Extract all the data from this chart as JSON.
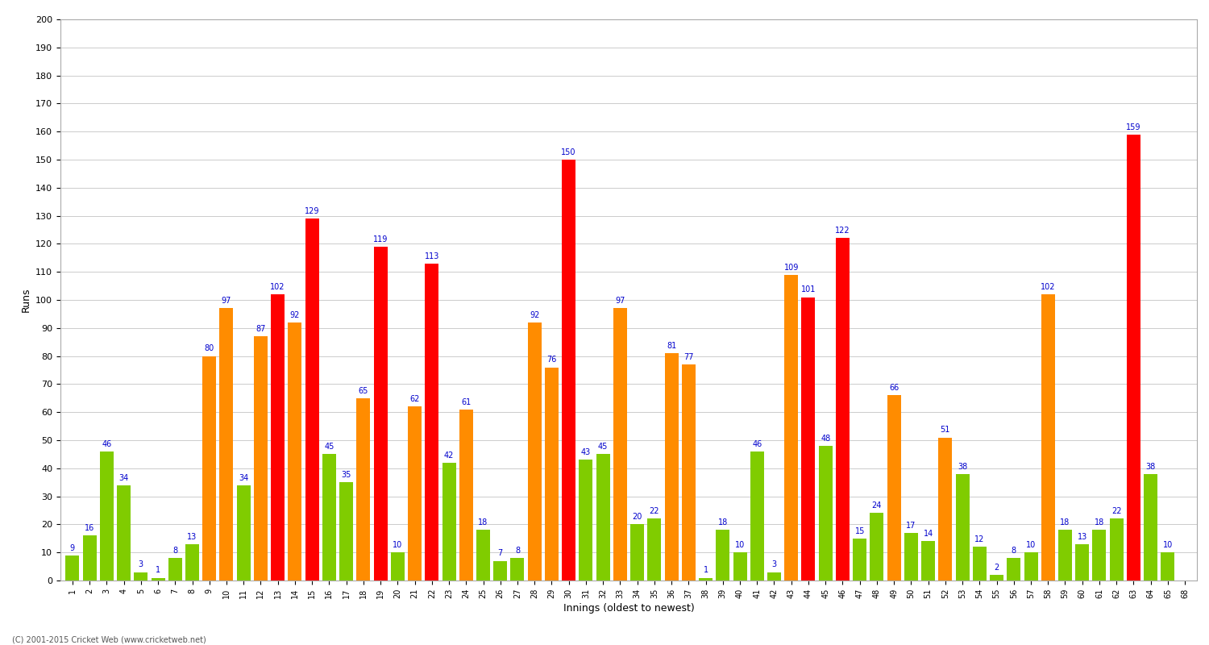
{
  "title": "",
  "xlabel": "Innings (oldest to newest)",
  "ylabel": "Runs",
  "footnote": "(C) 2001-2015 Cricket Web (www.cricketweb.net)",
  "ylim": [
    0,
    200
  ],
  "yticks": [
    0,
    10,
    20,
    30,
    40,
    50,
    60,
    70,
    80,
    90,
    100,
    110,
    120,
    130,
    140,
    150,
    160,
    170,
    180,
    190,
    200
  ],
  "innings_labels": [
    "1",
    "2",
    "3",
    "4",
    "5",
    "6",
    "7",
    "8",
    "9",
    "10",
    "11",
    "12",
    "13",
    "14",
    "15",
    "16",
    "17",
    "18",
    "19",
    "20",
    "21",
    "22",
    "23",
    "24",
    "25",
    "26",
    "27",
    "28",
    "29",
    "30",
    "31",
    "32",
    "33",
    "34",
    "35",
    "36",
    "37",
    "38",
    "39",
    "40",
    "41",
    "42",
    "43",
    "44",
    "45",
    "46",
    "47",
    "48",
    "49",
    "50",
    "51",
    "52",
    "53",
    "54",
    "55",
    "56",
    "57",
    "58",
    "59",
    "60",
    "61",
    "62",
    "63",
    "64",
    "65",
    "68"
  ],
  "values": [
    9,
    16,
    46,
    34,
    3,
    1,
    8,
    13,
    80,
    97,
    34,
    87,
    102,
    92,
    129,
    45,
    35,
    65,
    119,
    10,
    62,
    113,
    42,
    61,
    18,
    7,
    8,
    92,
    76,
    150,
    43,
    45,
    97,
    20,
    22,
    81,
    77,
    1,
    18,
    10,
    46,
    3,
    109,
    101,
    48,
    122,
    15,
    24,
    66,
    17,
    14,
    51,
    38,
    12,
    2,
    8,
    10,
    102,
    18,
    13,
    18,
    22,
    159,
    38,
    10,
    0
  ],
  "colors": [
    "#80cc00",
    "#80cc00",
    "#80cc00",
    "#80cc00",
    "#80cc00",
    "#80cc00",
    "#80cc00",
    "#80cc00",
    "#ff8c00",
    "#ff8c00",
    "#80cc00",
    "#ff8c00",
    "#ff0000",
    "#ff8c00",
    "#ff0000",
    "#80cc00",
    "#80cc00",
    "#ff8c00",
    "#ff0000",
    "#80cc00",
    "#ff8c00",
    "#ff0000",
    "#80cc00",
    "#ff8c00",
    "#80cc00",
    "#80cc00",
    "#80cc00",
    "#ff8c00",
    "#ff8c00",
    "#ff0000",
    "#80cc00",
    "#80cc00",
    "#ff8c00",
    "#80cc00",
    "#80cc00",
    "#ff8c00",
    "#ff8c00",
    "#80cc00",
    "#80cc00",
    "#80cc00",
    "#80cc00",
    "#80cc00",
    "#ff8c00",
    "#ff0000",
    "#80cc00",
    "#ff0000",
    "#80cc00",
    "#80cc00",
    "#ff8c00",
    "#80cc00",
    "#80cc00",
    "#ff8c00",
    "#80cc00",
    "#80cc00",
    "#80cc00",
    "#80cc00",
    "#80cc00",
    "#ff8c00",
    "#80cc00",
    "#80cc00",
    "#80cc00",
    "#80cc00",
    "#ff0000",
    "#80cc00",
    "#80cc00",
    "#80cc00"
  ],
  "label_color": "#0000cc",
  "bar_width": 0.8,
  "bg_color": "#ffffff",
  "grid_color": "#cccccc",
  "title_fontsize": 11,
  "axis_fontsize": 8,
  "label_fontsize": 7
}
